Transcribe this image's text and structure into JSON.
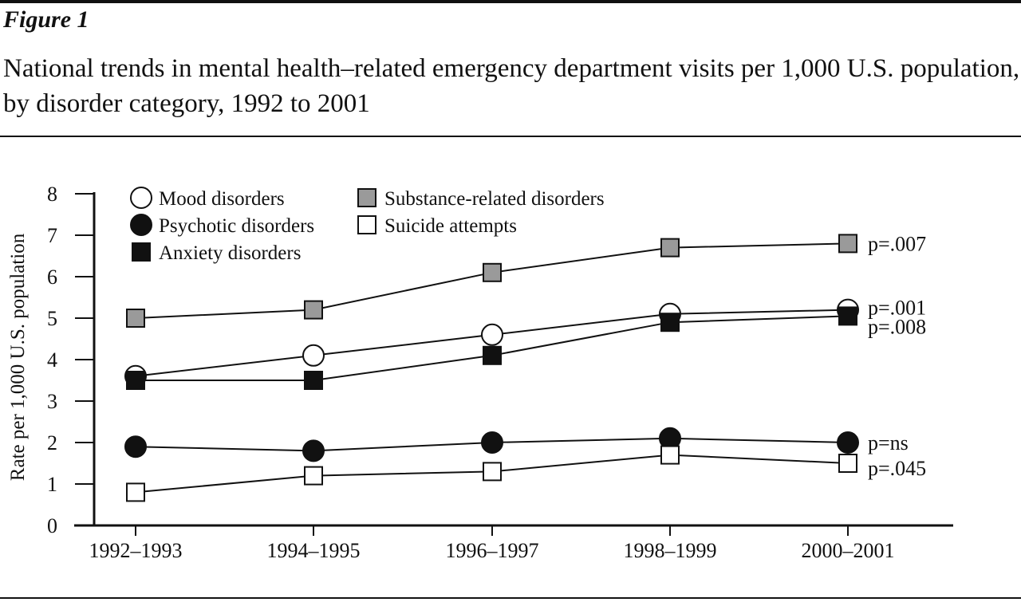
{
  "figure_label": "Figure 1",
  "figure_title": "National trends in mental health–related emergency department visits per 1,000 U.S. population, by disorder category, 1992 to 2001",
  "chart_data": {
    "type": "line",
    "categories": [
      "1992–1993",
      "1994–1995",
      "1996–1997",
      "1998–1999",
      "2000–2001"
    ],
    "ylabel": "Rate per 1,000 U.S. population",
    "xlabel": "",
    "ylim": [
      0,
      8
    ],
    "yticks": [
      "0",
      "1",
      "2",
      "3",
      "4",
      "5",
      "6",
      "7",
      "8"
    ],
    "legend_placement": "top-left",
    "series": [
      {
        "name": "Mood disorders",
        "marker": "circle",
        "fill": "#ffffff",
        "values": [
          3.6,
          4.1,
          4.6,
          5.1,
          5.2
        ],
        "annotation": "p=.001"
      },
      {
        "name": "Psychotic disorders",
        "marker": "circle",
        "fill": "#111111",
        "values": [
          1.9,
          1.8,
          2.0,
          2.1,
          2.0
        ],
        "annotation": "p=ns"
      },
      {
        "name": "Anxiety disorders",
        "marker": "square",
        "fill": "#111111",
        "values": [
          3.5,
          3.5,
          4.1,
          4.9,
          5.05
        ],
        "annotation": "p=.008"
      },
      {
        "name": "Substance-related disorders",
        "marker": "square",
        "fill": "#9a9a9a",
        "values": [
          5.0,
          5.2,
          6.1,
          6.7,
          6.8
        ],
        "annotation": "p=.007"
      },
      {
        "name": "Suicide attempts",
        "marker": "square",
        "fill": "#ffffff",
        "values": [
          0.8,
          1.2,
          1.3,
          1.7,
          1.5
        ],
        "annotation": "p=.045"
      }
    ]
  }
}
